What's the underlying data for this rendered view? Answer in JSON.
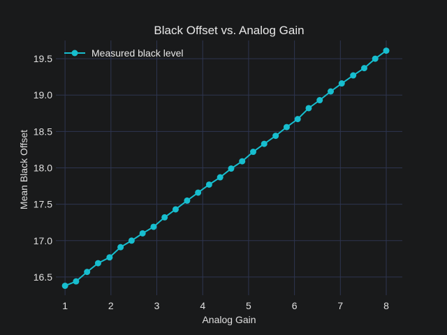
{
  "chart_data": {
    "type": "line",
    "title": "Black Offset vs. Analog Gain",
    "xlabel": "Analog Gain",
    "ylabel": "Mean Black Offset",
    "xlim": [
      0.8,
      8.35
    ],
    "ylim": [
      16.25,
      19.75
    ],
    "xticks": [
      1,
      2,
      3,
      4,
      5,
      6,
      7,
      8
    ],
    "yticks": [
      16.5,
      17.0,
      17.5,
      18.0,
      18.5,
      19.0,
      19.5
    ],
    "xtick_labels": [
      "1",
      "2",
      "3",
      "4",
      "5",
      "6",
      "7",
      "8"
    ],
    "ytick_labels": [
      "16.5",
      "17.0",
      "17.5",
      "18.0",
      "18.5",
      "19.0",
      "19.5"
    ],
    "grid": true,
    "legend_position": "top-left",
    "series": [
      {
        "name": "Measured black level",
        "color": "#17becf",
        "marker": "circle",
        "x": [
          1.0,
          1.24,
          1.48,
          1.72,
          1.97,
          2.21,
          2.45,
          2.69,
          2.93,
          3.17,
          3.41,
          3.66,
          3.9,
          4.14,
          4.38,
          4.62,
          4.86,
          5.1,
          5.34,
          5.59,
          5.83,
          6.07,
          6.31,
          6.55,
          6.79,
          7.03,
          7.28,
          7.52,
          7.76,
          8.0
        ],
        "y": [
          16.38,
          16.44,
          16.57,
          16.69,
          16.77,
          16.91,
          17.0,
          17.1,
          17.19,
          17.32,
          17.43,
          17.55,
          17.66,
          17.77,
          17.87,
          17.99,
          18.09,
          18.22,
          18.33,
          18.44,
          18.56,
          18.67,
          18.82,
          18.93,
          19.05,
          19.16,
          19.27,
          19.37,
          19.5,
          19.61
        ]
      }
    ]
  }
}
